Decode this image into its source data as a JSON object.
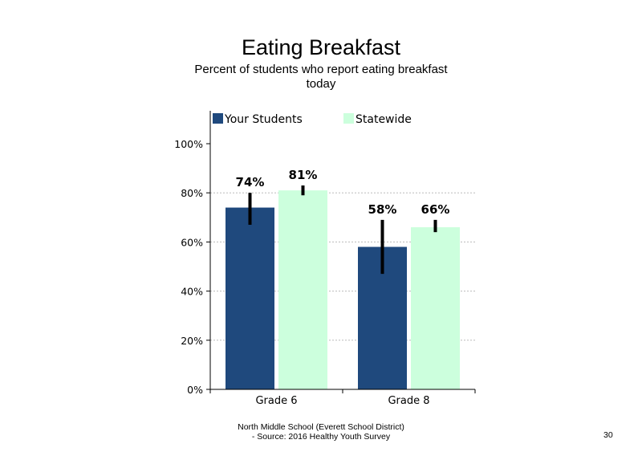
{
  "header": {
    "title": "Eating Breakfast",
    "subtitle_line1": "Percent of students who report eating breakfast",
    "subtitle_line2": "today"
  },
  "footer": {
    "line1": "North Middle School (Everett School District)",
    "line2": "- Source: 2016 Healthy Youth Survey",
    "page_number": "30"
  },
  "colors": {
    "your_students": "#1f497d",
    "statewide": "#ccffdd",
    "error_bar": "#000000",
    "gridline": "#bbbbbb"
  },
  "chart_data": {
    "type": "bar",
    "categories": [
      "Grade 6",
      "Grade 8"
    ],
    "series": [
      {
        "name": "Your Students",
        "values": [
          74,
          58
        ],
        "labels": [
          "74%",
          "58%"
        ],
        "error_low": [
          67,
          47
        ],
        "error_high": [
          80,
          69
        ]
      },
      {
        "name": "Statewide",
        "values": [
          81,
          66
        ],
        "labels": [
          "81%",
          "66%"
        ],
        "error_low": [
          79,
          64
        ],
        "error_high": [
          83,
          69
        ]
      }
    ],
    "ylim": [
      0,
      100
    ],
    "yticks": [
      0,
      20,
      40,
      60,
      80,
      100
    ],
    "ytick_labels": [
      "0%",
      "20%",
      "40%",
      "60%",
      "80%",
      "100%"
    ],
    "grid": "dotted horizontal",
    "legend": "top-left"
  }
}
